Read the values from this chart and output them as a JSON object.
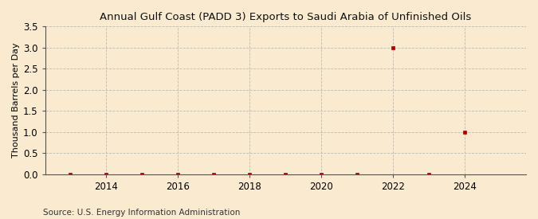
{
  "title": "Annual Gulf Coast (PADD 3) Exports to Saudi Arabia of Unfinished Oils",
  "ylabel": "Thousand Barrels per Day",
  "source": "Source: U.S. Energy Information Administration",
  "background_color": "#faebd0",
  "plot_background_color": "#faebd0",
  "marker_color": "#aa0000",
  "grid_color": "#bbbbbb",
  "xlim": [
    2012.3,
    2025.7
  ],
  "ylim": [
    0.0,
    3.5
  ],
  "yticks": [
    0.0,
    0.5,
    1.0,
    1.5,
    2.0,
    2.5,
    3.0,
    3.5
  ],
  "xticks": [
    2014,
    2016,
    2018,
    2020,
    2022,
    2024
  ],
  "x_data": [
    2013,
    2014,
    2015,
    2016,
    2017,
    2018,
    2019,
    2020,
    2021,
    2022,
    2023,
    2024
  ],
  "y_data": [
    0.0,
    0.0,
    0.0,
    0.0,
    0.0,
    0.0,
    0.0,
    0.0,
    0.0,
    3.0,
    0.0,
    1.0
  ]
}
